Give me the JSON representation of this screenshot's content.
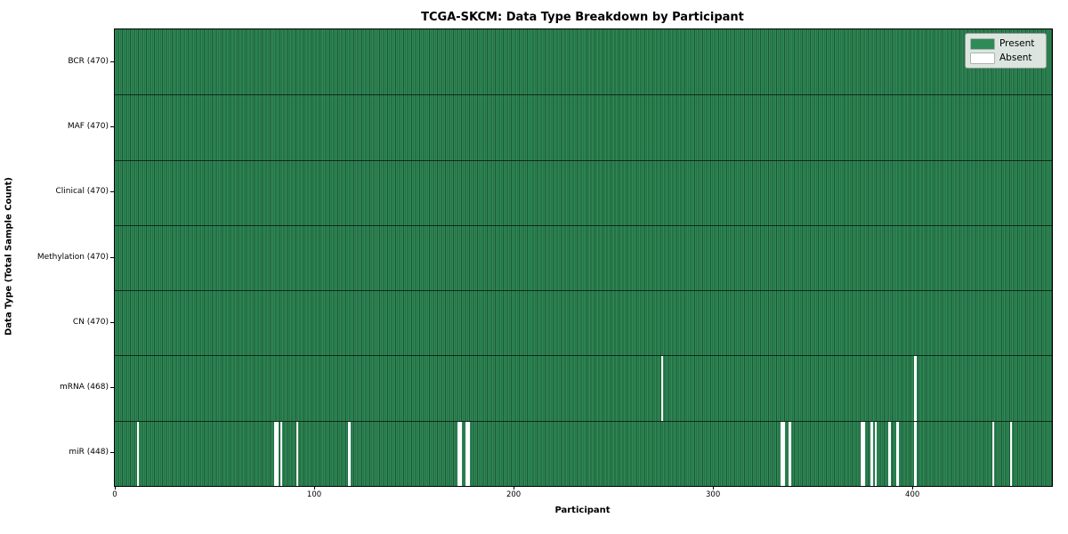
{
  "chart_data": {
    "type": "heatmap",
    "title": "TCGA-SKCM: Data Type Breakdown by Participant",
    "xlabel": "Participant",
    "ylabel": "Data Type (Total Sample Count)",
    "x_range": [
      0,
      470
    ],
    "x_ticks": [
      0,
      100,
      200,
      300,
      400
    ],
    "n_participants": 470,
    "grid": false,
    "legend_position": "upper right",
    "colors": {
      "present": "#2e8b57",
      "absent": "#ffffff"
    },
    "legend": [
      {
        "label": "Present",
        "color": "#2e8b57"
      },
      {
        "label": "Absent",
        "color": "#ffffff"
      }
    ],
    "rows": [
      {
        "label": "BCR (470)",
        "data_type": "BCR",
        "present_count": 470,
        "absent_participants": []
      },
      {
        "label": "MAF (470)",
        "data_type": "MAF",
        "present_count": 470,
        "absent_participants": []
      },
      {
        "label": "Clinical (470)",
        "data_type": "Clinical",
        "present_count": 470,
        "absent_participants": []
      },
      {
        "label": "Methylation (470)",
        "data_type": "Methylation",
        "present_count": 470,
        "absent_participants": []
      },
      {
        "label": "CN (470)",
        "data_type": "CN",
        "present_count": 470,
        "absent_participants": []
      },
      {
        "label": "mRNA (468)",
        "data_type": "mRNA",
        "present_count": 468,
        "absent_participants": [
          274,
          401
        ]
      },
      {
        "label": "miR (448)",
        "data_type": "miR",
        "present_count": 448,
        "absent_participants": [
          11,
          80,
          81,
          83,
          91,
          117,
          172,
          173,
          176,
          177,
          334,
          335,
          338,
          374,
          375,
          379,
          381,
          388,
          392,
          401,
          440,
          449
        ]
      }
    ]
  }
}
